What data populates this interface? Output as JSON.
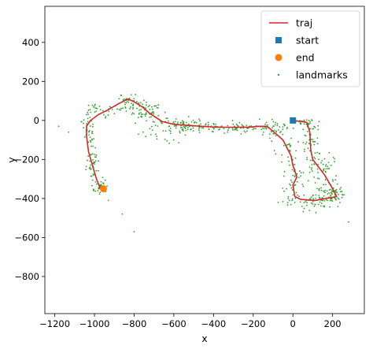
{
  "chart_data": {
    "type": "scatter",
    "title": "",
    "xlabel": "x",
    "ylabel": "y",
    "xlim": [
      -1250,
      360
    ],
    "ylim": [
      -990,
      585
    ],
    "grid": false,
    "legend_position": "top-right",
    "x_ticks": [
      -1200,
      -1000,
      -800,
      -600,
      -400,
      -200,
      0,
      200
    ],
    "y_ticks": [
      400,
      200,
      0,
      -200,
      -400,
      -600,
      -800
    ],
    "x_tick_labels": [
      "−1200",
      "−1000",
      "−800",
      "−600",
      "−400",
      "−200",
      "0",
      "200"
    ],
    "y_tick_labels": [
      "400",
      "200",
      "0",
      "−200",
      "−400",
      "−600",
      "−800"
    ],
    "series": [
      {
        "name": "traj",
        "kind": "line",
        "color": "#d62728",
        "points": [
          [
            0,
            0
          ],
          [
            40,
            -5
          ],
          [
            70,
            -10
          ],
          [
            85,
            -60
          ],
          [
            90,
            -150
          ],
          [
            100,
            -200
          ],
          [
            160,
            -280
          ],
          [
            200,
            -350
          ],
          [
            220,
            -390
          ],
          [
            170,
            -400
          ],
          [
            110,
            -410
          ],
          [
            40,
            -405
          ],
          [
            10,
            -390
          ],
          [
            0,
            -330
          ],
          [
            20,
            -290
          ],
          [
            0,
            -230
          ],
          [
            -10,
            -180
          ],
          [
            -50,
            -100
          ],
          [
            -95,
            -60
          ],
          [
            -130,
            -30
          ],
          [
            -170,
            -30
          ],
          [
            -230,
            -35
          ],
          [
            -300,
            -35
          ],
          [
            -380,
            -35
          ],
          [
            -460,
            -30
          ],
          [
            -540,
            -25
          ],
          [
            -600,
            -20
          ],
          [
            -660,
            -5
          ],
          [
            -720,
            35
          ],
          [
            -760,
            70
          ],
          [
            -800,
            95
          ],
          [
            -830,
            110
          ],
          [
            -880,
            85
          ],
          [
            -930,
            55
          ],
          [
            -980,
            30
          ],
          [
            -1020,
            0
          ],
          [
            -1040,
            -30
          ],
          [
            -1040,
            -80
          ],
          [
            -1030,
            -160
          ],
          [
            -1010,
            -230
          ],
          [
            -990,
            -300
          ],
          [
            -970,
            -350
          ],
          [
            -960,
            -355
          ]
        ]
      },
      {
        "name": "start",
        "kind": "marker-square",
        "color": "#1f77b4",
        "x": 0,
        "y": 0
      },
      {
        "name": "end",
        "kind": "marker-circle",
        "color": "#ff7f0e",
        "x": -955,
        "y": -350
      },
      {
        "name": "landmarks",
        "kind": "scatter",
        "color": "#2ca02c",
        "clusters": [
          {
            "cx": 60,
            "cy": -10,
            "sx": 25,
            "sy": 15,
            "n": 25
          },
          {
            "cx": 90,
            "cy": -120,
            "sx": 15,
            "sy": 50,
            "n": 40
          },
          {
            "cx": 150,
            "cy": -260,
            "sx": 35,
            "sy": 45,
            "n": 60
          },
          {
            "cx": 210,
            "cy": -380,
            "sx": 25,
            "sy": 25,
            "n": 45
          },
          {
            "cx": 110,
            "cy": -405,
            "sx": 50,
            "sy": 15,
            "n": 45
          },
          {
            "cx": 10,
            "cy": -330,
            "sx": 25,
            "sy": 60,
            "n": 45
          },
          {
            "cx": -20,
            "cy": -150,
            "sx": 35,
            "sy": 60,
            "n": 25
          },
          {
            "cx": -100,
            "cy": -50,
            "sx": 35,
            "sy": 25,
            "n": 30
          },
          {
            "cx": -300,
            "cy": -35,
            "sx": 120,
            "sy": 15,
            "n": 110
          },
          {
            "cx": -580,
            "cy": -20,
            "sx": 60,
            "sy": 20,
            "n": 70
          },
          {
            "cx": -730,
            "cy": 40,
            "sx": 40,
            "sy": 30,
            "n": 55
          },
          {
            "cx": -830,
            "cy": 95,
            "sx": 35,
            "sy": 20,
            "n": 40
          },
          {
            "cx": -940,
            "cy": 50,
            "sx": 50,
            "sy": 20,
            "n": 35
          },
          {
            "cx": -1030,
            "cy": -60,
            "sx": 15,
            "sy": 45,
            "n": 35
          },
          {
            "cx": -1010,
            "cy": -220,
            "sx": 15,
            "sy": 60,
            "n": 45
          },
          {
            "cx": -970,
            "cy": -340,
            "sx": 20,
            "sy": 25,
            "n": 30
          },
          {
            "cx": -700,
            "cy": -60,
            "sx": 80,
            "sy": 30,
            "n": 20
          },
          {
            "cx": 80,
            "cy": -430,
            "sx": 90,
            "sy": 30,
            "n": 20
          }
        ],
        "outliers": [
          [
            -800,
            -570
          ],
          [
            -860,
            -480
          ],
          [
            280,
            -520
          ],
          [
            -1180,
            -30
          ],
          [
            -1130,
            -60
          ],
          [
            -930,
            -410
          ]
        ]
      }
    ]
  }
}
